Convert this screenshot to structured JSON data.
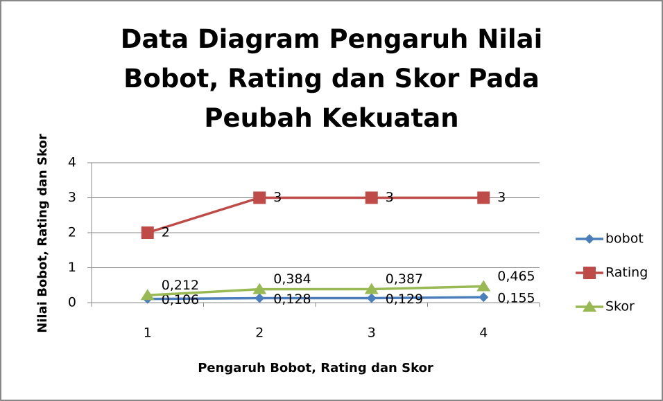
{
  "chart_data": {
    "type": "line",
    "title": "Data Diagram Pengaruh Nilai Bobot, Rating dan Skor Pada Peubah Kekuatan",
    "x_label": "Pengaruh Bobot, Rating dan Skor",
    "y_label": "Nilai Bobot, Rating dan Skor",
    "categories": [
      "1",
      "2",
      "3",
      "4"
    ],
    "series": [
      {
        "name": "bobot",
        "color": "#4a7ebb",
        "marker": "diamond",
        "values": [
          0.106,
          0.128,
          0.129,
          0.155
        ],
        "value_labels": [
          "0,106",
          "0,128",
          "0,129",
          "0,155"
        ]
      },
      {
        "name": "Rating",
        "color": "#be4b48",
        "marker": "square",
        "values": [
          2,
          3,
          3,
          3
        ]
      },
      {
        "name": "Skor",
        "color": "#98b954",
        "marker": "triangle",
        "values": [
          0.212,
          0.384,
          0.387,
          0.465
        ],
        "value_labels": [
          "0,212",
          "0,384",
          "0,387",
          "0,465"
        ]
      }
    ],
    "ylim": [
      0,
      4
    ],
    "yticks": [
      0,
      1,
      2,
      3,
      4
    ],
    "grid": true,
    "legend": "right"
  }
}
